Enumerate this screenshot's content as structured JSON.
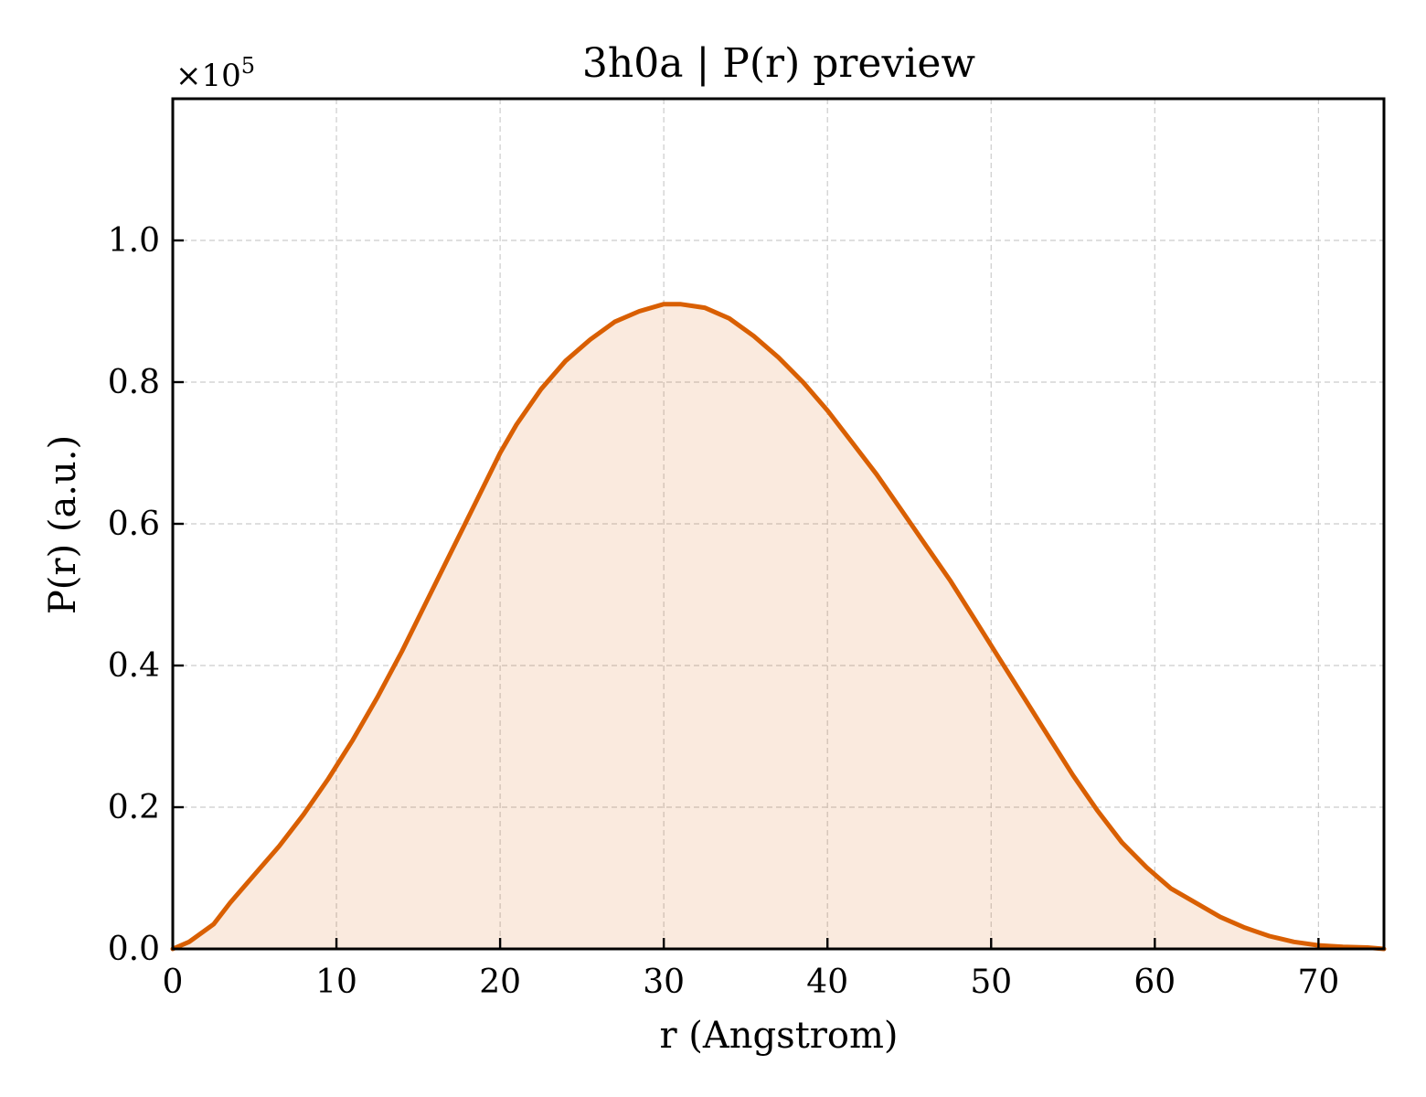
{
  "chart_data": {
    "type": "area",
    "title": "3h0a | P(r) preview",
    "xlabel": "r (Angstrom)",
    "ylabel": "P(r) (a.u.)",
    "y_multiplier": "×10",
    "y_multiplier_exponent": "5",
    "xlim": [
      0,
      74
    ],
    "ylim": [
      0,
      1.2
    ],
    "grid": true,
    "x_ticks": [
      0,
      10,
      20,
      30,
      40,
      50,
      60,
      70
    ],
    "x_tick_labels": [
      "0",
      "10",
      "20",
      "30",
      "40",
      "50",
      "60",
      "70"
    ],
    "y_ticks": [
      0.0,
      0.2,
      0.4,
      0.6,
      0.8,
      1.0
    ],
    "y_tick_labels": [
      "0.0",
      "0.2",
      "0.4",
      "0.6",
      "0.8",
      "1.0"
    ],
    "series": [
      {
        "color": "#d95f02",
        "fill_color": "#d95f02",
        "fill_opacity": 0.13,
        "x": [
          0,
          1,
          2.5,
          3.5,
          5,
          6.5,
          8,
          9.5,
          11,
          12.5,
          14,
          15.5,
          17,
          18.5,
          20,
          21,
          22.5,
          24,
          25.5,
          27,
          28.5,
          30,
          31,
          32.5,
          34,
          35.5,
          37,
          38.5,
          40,
          41.5,
          43,
          44.5,
          46,
          47.5,
          49,
          50.5,
          52,
          53.5,
          55,
          56.5,
          58,
          59.5,
          61,
          62.5,
          64,
          65.5,
          67,
          68.5,
          70,
          71.5,
          73,
          74
        ],
        "y": [
          0.0,
          0.01,
          0.035,
          0.065,
          0.105,
          0.145,
          0.19,
          0.24,
          0.295,
          0.355,
          0.42,
          0.49,
          0.56,
          0.63,
          0.7,
          0.74,
          0.79,
          0.83,
          0.86,
          0.885,
          0.9,
          0.91,
          0.91,
          0.905,
          0.89,
          0.865,
          0.835,
          0.8,
          0.76,
          0.715,
          0.67,
          0.62,
          0.57,
          0.52,
          0.465,
          0.41,
          0.355,
          0.3,
          0.245,
          0.195,
          0.15,
          0.115,
          0.085,
          0.065,
          0.045,
          0.03,
          0.018,
          0.01,
          0.005,
          0.003,
          0.002,
          0.0
        ]
      }
    ]
  }
}
